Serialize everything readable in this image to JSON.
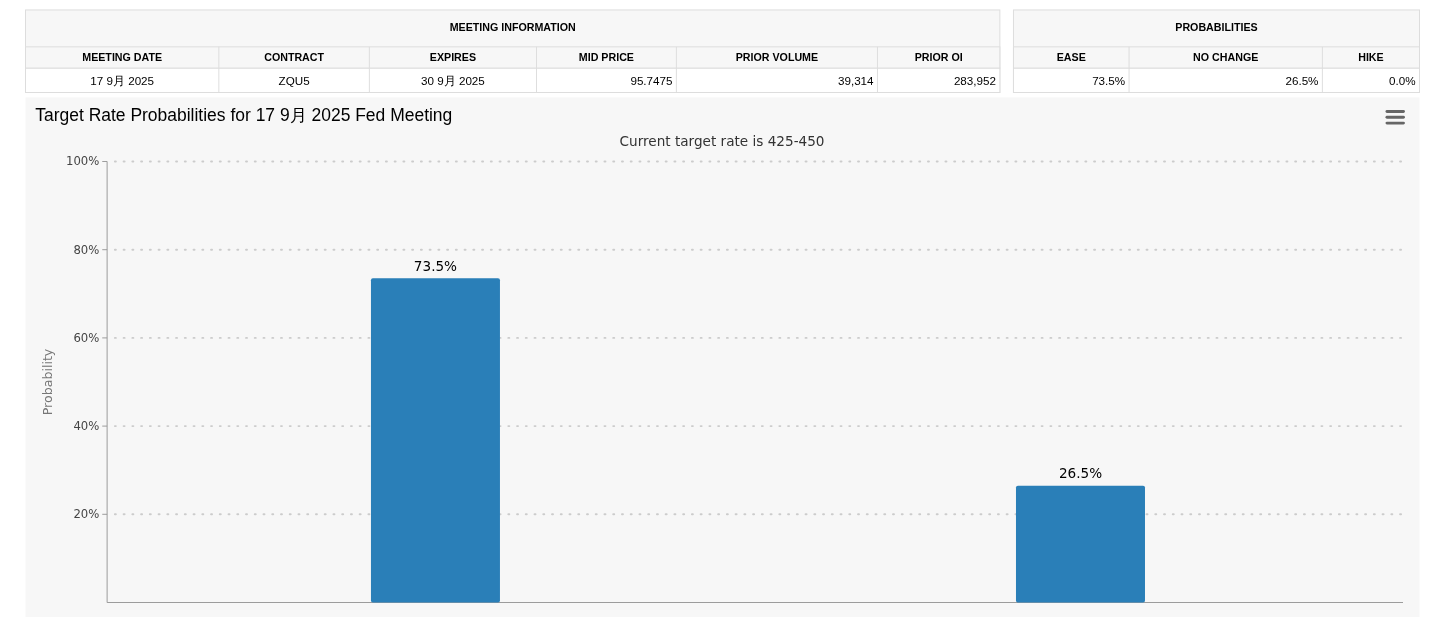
{
  "chart_data": [
    {
      "type": "other",
      "title": "MEETING INFORMATION",
      "categories": [
        "MEETING DATE",
        "CONTRACT",
        "EXPIRES",
        "MID PRICE",
        "PRIOR VOLUME",
        "PRIOR OI"
      ],
      "annotations": [
        "17 9月 2025",
        "ZQU5",
        "30 9月 2025",
        "95.7475",
        "39,314",
        "283,952"
      ]
    },
    {
      "type": "other",
      "title": "PROBABILITIES",
      "categories": [
        "EASE",
        "NO CHANGE",
        "HIKE"
      ],
      "annotations": [
        "73.5%",
        "26.5%",
        "0.0%"
      ]
    },
    {
      "type": "bar",
      "title": "Target Rate Probabilities for 17 9月 2025 Fed Meeting",
      "subtitle": "Current target rate is 425-450",
      "ylabel": "Probability",
      "categories": [
        null,
        null
      ],
      "values": [
        73.5,
        26.5
      ],
      "color": "#2a7fb8",
      "value_labels": [
        "73.5%",
        "26.5%"
      ],
      "ylim": [
        0,
        100
      ],
      "yticks": [
        {
          "value": 20,
          "label": "20%"
        },
        {
          "value": 40,
          "label": "40%"
        },
        {
          "value": 60,
          "label": "60%"
        },
        {
          "value": 80,
          "label": "80%"
        },
        {
          "value": 100,
          "label": "100%"
        }
      ],
      "grid": "y"
    }
  ]
}
